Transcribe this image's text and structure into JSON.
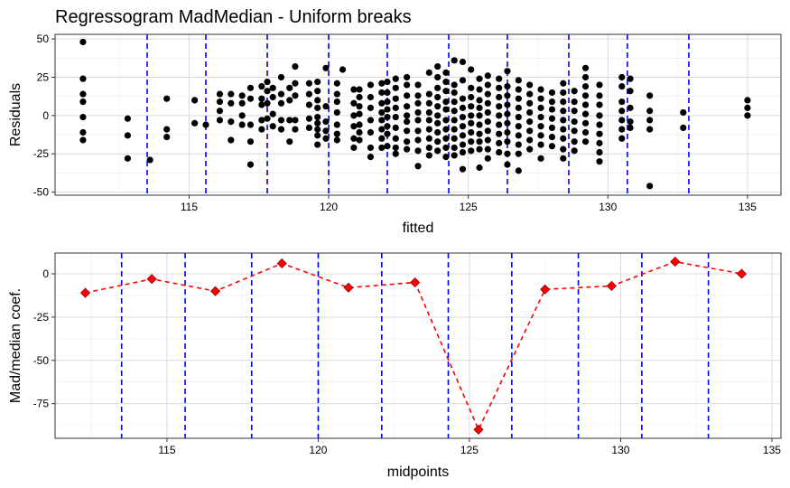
{
  "title": "Regressogram MadMedian - Uniform breaks",
  "colors": {
    "points": "#000000",
    "breaks": "#0000ff",
    "coef_line": "#ff0000",
    "coef_marker": "#ff0000",
    "grid_major": "#d9d9d9",
    "grid_minor": "#ececec",
    "panel_border": "#333333"
  },
  "chart_data": [
    {
      "type": "scatter",
      "xlabel": "fitted",
      "ylabel": "Residuals",
      "xlim": [
        110.2,
        136.2
      ],
      "ylim": [
        -52,
        53
      ],
      "x_ticks": [
        115,
        120,
        125,
        130,
        135
      ],
      "x_tick_labels": [
        "115",
        "120",
        "125",
        "130",
        "135"
      ],
      "y_ticks": [
        -50,
        -25,
        0,
        25,
        50
      ],
      "y_tick_labels": [
        "-50",
        "-25",
        "0",
        "25",
        "50"
      ],
      "grid": true,
      "vlines": [
        113.5,
        115.6,
        117.8,
        120.0,
        122.1,
        124.3,
        126.4,
        128.6,
        130.7,
        132.9
      ],
      "vline_style": "dashed",
      "columns": [
        {
          "x": 111.2,
          "y": [
            48,
            24,
            14,
            9,
            -1,
            -11,
            -16
          ]
        },
        {
          "x": 112.8,
          "y": [
            -2,
            -13,
            -28
          ]
        },
        {
          "x": 113.6,
          "y": [
            -29
          ]
        },
        {
          "x": 114.2,
          "y": [
            11,
            -9,
            -14
          ]
        },
        {
          "x": 115.2,
          "y": [
            10,
            -5
          ]
        },
        {
          "x": 115.6,
          "y": [
            -6
          ]
        },
        {
          "x": 116.1,
          "y": [
            14,
            9,
            3,
            -3
          ]
        },
        {
          "x": 116.5,
          "y": [
            14,
            8,
            -4,
            -16
          ]
        },
        {
          "x": 116.9,
          "y": [
            13,
            8,
            0,
            -6
          ]
        },
        {
          "x": 117.2,
          "y": [
            18,
            11,
            -6,
            -17,
            -32
          ]
        },
        {
          "x": 117.6,
          "y": [
            19,
            11,
            7,
            -3,
            -9
          ]
        },
        {
          "x": 117.8,
          "y": [
            22,
            16,
            8,
            -2
          ]
        },
        {
          "x": 118.0,
          "y": [
            18,
            12,
            1,
            -7
          ]
        },
        {
          "x": 118.3,
          "y": [
            25,
            14,
            8,
            -3,
            -9
          ]
        },
        {
          "x": 118.6,
          "y": [
            18,
            10,
            -3,
            -17
          ]
        },
        {
          "x": 118.8,
          "y": [
            32,
            21,
            13,
            -3,
            -9
          ]
        },
        {
          "x": 119.3,
          "y": [
            21,
            14,
            7,
            -2,
            -8
          ]
        },
        {
          "x": 119.6,
          "y": [
            22,
            16,
            10,
            5,
            -1,
            -5,
            -9,
            -13,
            -19
          ]
        },
        {
          "x": 119.9,
          "y": [
            31,
            6,
            -4,
            -10,
            -15
          ]
        },
        {
          "x": 120.3,
          "y": [
            21,
            14,
            9,
            2,
            -6,
            -12,
            -16
          ]
        },
        {
          "x": 120.5,
          "y": [
            30
          ]
        },
        {
          "x": 120.9,
          "y": [
            17,
            8,
            0,
            -7,
            -15,
            -21
          ]
        },
        {
          "x": 121.1,
          "y": [
            17,
            12,
            6,
            1,
            -6,
            -11,
            -16
          ]
        },
        {
          "x": 121.5,
          "y": [
            20,
            12,
            5,
            -3,
            -11,
            -21,
            -27
          ]
        },
        {
          "x": 121.9,
          "y": [
            21,
            15,
            8,
            2,
            -3,
            -9,
            -15,
            -21
          ]
        },
        {
          "x": 122.1,
          "y": [
            22,
            15,
            9,
            4,
            -1,
            -7,
            -12,
            -20
          ]
        },
        {
          "x": 122.4,
          "y": [
            24,
            18,
            11,
            5,
            -1,
            -8,
            -15,
            -21,
            -25
          ]
        },
        {
          "x": 122.8,
          "y": [
            25,
            20,
            13,
            6,
            0,
            -4,
            -10,
            -17,
            -22
          ]
        },
        {
          "x": 123.2,
          "y": [
            20,
            13,
            8,
            2,
            -3,
            -10,
            -16,
            -23,
            -33
          ]
        },
        {
          "x": 123.6,
          "y": [
            28,
            14,
            8,
            2,
            -3,
            -9,
            -15,
            -21,
            -26
          ]
        },
        {
          "x": 123.9,
          "y": [
            32,
            25,
            18,
            12,
            6,
            0,
            -5,
            -11,
            -17,
            -23
          ]
        },
        {
          "x": 124.2,
          "y": [
            28,
            22,
            16,
            9,
            4,
            -3,
            -9,
            -15,
            -21,
            -27
          ]
        },
        {
          "x": 124.5,
          "y": [
            36,
            20,
            15,
            9,
            3,
            -3,
            -9,
            -15,
            -21,
            -26
          ]
        },
        {
          "x": 124.8,
          "y": [
            35,
            23,
            11,
            5,
            -1,
            -7,
            -13,
            -19,
            -24,
            -35
          ]
        },
        {
          "x": 125.1,
          "y": [
            30,
            18,
            12,
            6,
            0,
            -5,
            -11,
            -17,
            -23
          ]
        },
        {
          "x": 125.4,
          "y": [
            24,
            17,
            10,
            5,
            0,
            -6,
            -12,
            -17,
            -22,
            -34
          ]
        },
        {
          "x": 125.7,
          "y": [
            26,
            20,
            14,
            8,
            2,
            -4,
            -10,
            -16,
            -22,
            -28
          ]
        },
        {
          "x": 126.1,
          "y": [
            24,
            18,
            12,
            6,
            0,
            -6,
            -12,
            -18,
            -24
          ]
        },
        {
          "x": 126.4,
          "y": [
            29,
            19,
            13,
            7,
            1,
            -5,
            -11,
            -17,
            -25,
            -32
          ]
        },
        {
          "x": 126.8,
          "y": [
            23,
            17,
            11,
            5,
            -1,
            -7,
            -13,
            -19,
            -25,
            -36
          ]
        },
        {
          "x": 127.2,
          "y": [
            20,
            14,
            8,
            2,
            -4,
            -10,
            -16,
            -22
          ]
        },
        {
          "x": 127.6,
          "y": [
            17,
            11,
            5,
            -1,
            -7,
            -13,
            -19,
            -28
          ]
        },
        {
          "x": 128.0,
          "y": [
            15,
            9,
            4,
            -2,
            -8,
            -14,
            -20
          ]
        },
        {
          "x": 128.4,
          "y": [
            21,
            15,
            9,
            3,
            -3,
            -9,
            -15,
            -22,
            -28
          ]
        },
        {
          "x": 128.8,
          "y": [
            16,
            9,
            3,
            -4,
            -10,
            -17,
            -23
          ]
        },
        {
          "x": 129.2,
          "y": [
            31,
            25,
            19,
            13,
            7,
            1,
            -5,
            -11,
            -17
          ]
        },
        {
          "x": 129.7,
          "y": [
            20,
            13,
            7,
            0,
            -6,
            -12,
            -18,
            -24,
            -30
          ]
        },
        {
          "x": 130.5,
          "y": [
            25,
            19,
            9,
            3,
            -3,
            -9,
            -15
          ]
        },
        {
          "x": 130.8,
          "y": [
            24,
            16,
            5,
            -4,
            -8
          ]
        },
        {
          "x": 131.5,
          "y": [
            13,
            3,
            -3,
            -9,
            -46
          ]
        },
        {
          "x": 132.7,
          "y": [
            2,
            -8
          ]
        },
        {
          "x": 135.0,
          "y": [
            10,
            5,
            0
          ]
        }
      ]
    },
    {
      "type": "line",
      "xlabel": "midpoints",
      "ylabel": "Mad/median coef.",
      "xlim": [
        111.3,
        135.3
      ],
      "ylim": [
        -95,
        12
      ],
      "x_ticks": [
        115,
        120,
        125,
        130,
        135
      ],
      "x_tick_labels": [
        "115",
        "120",
        "125",
        "130",
        "135"
      ],
      "y_ticks": [
        -75,
        -50,
        -25,
        0
      ],
      "y_tick_labels": [
        "-75",
        "-50",
        "-25",
        "0"
      ],
      "grid": true,
      "vlines": [
        113.5,
        115.6,
        117.8,
        120.0,
        122.1,
        124.3,
        126.4,
        128.6,
        130.7,
        132.9
      ],
      "vline_style": "dashed",
      "marker": "diamond",
      "line_style": "dashed",
      "x": [
        112.3,
        114.5,
        116.6,
        118.8,
        121.0,
        123.2,
        125.3,
        127.5,
        129.7,
        131.8,
        134.0
      ],
      "y": [
        -11,
        -3,
        -10,
        6,
        -8,
        -5,
        -90,
        -9,
        -7,
        7,
        0
      ]
    }
  ]
}
